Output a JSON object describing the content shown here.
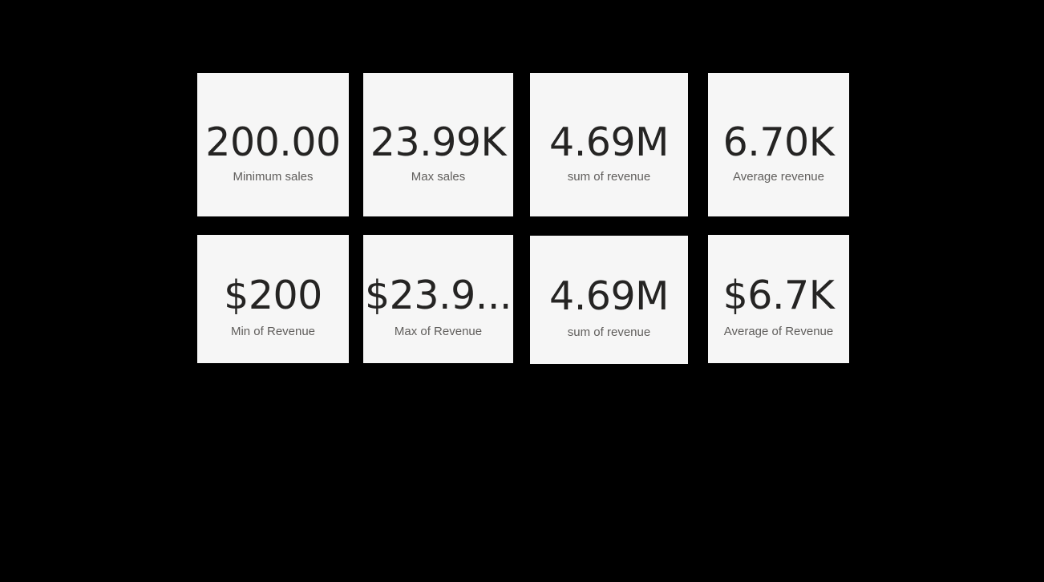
{
  "cards_row1": [
    {
      "value": "200.00",
      "label": "Minimum sales"
    },
    {
      "value": "23.99K",
      "label": "Max sales"
    },
    {
      "value": "4.69M",
      "label": "sum of revenue"
    },
    {
      "value": "6.70K",
      "label": "Average revenue"
    }
  ],
  "cards_row2": [
    {
      "value": "$200",
      "label": "Min of Revenue"
    },
    {
      "value": "$23.9...",
      "label": "Max of Revenue"
    },
    {
      "value": "4.69M",
      "label": "sum of revenue"
    },
    {
      "value": "$6.7K",
      "label": "Average of Revenue"
    }
  ],
  "colors": {
    "background": "#000000",
    "card_background": "#f6f6f6",
    "value_text": "#252423",
    "label_text": "#605e5c"
  }
}
